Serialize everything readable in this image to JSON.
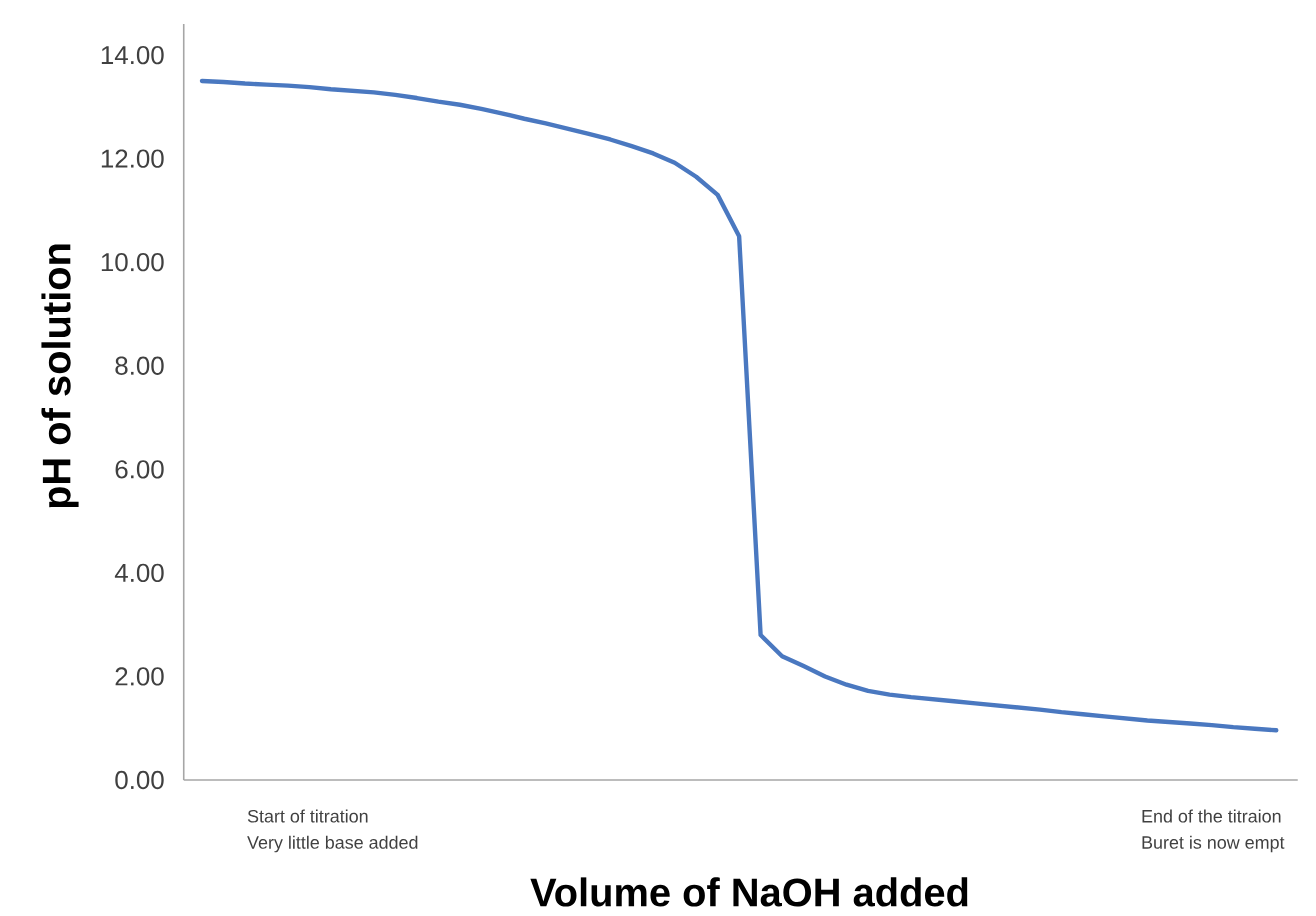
{
  "chart_data": {
    "type": "line",
    "xlabel": "Volume of NaOH added",
    "ylabel": "pH of solution",
    "ylim": [
      0,
      14.6
    ],
    "yticks": [
      {
        "value": 0,
        "label": "0.00"
      },
      {
        "value": 2,
        "label": "2.00"
      },
      {
        "value": 4,
        "label": "4.00"
      },
      {
        "value": 6,
        "label": "6.00"
      },
      {
        "value": 8,
        "label": "8.00"
      },
      {
        "value": 10,
        "label": "10.00"
      },
      {
        "value": 12,
        "label": "12.00"
      },
      {
        "value": 14,
        "label": "14.00"
      }
    ],
    "tick_labels": "y",
    "annotations": [
      "Start of titration",
      "Very little base added",
      "End of the titraion",
      "Buret is now empt"
    ],
    "categories": [
      null,
      null,
      null,
      null,
      null,
      null,
      null,
      null,
      null,
      null,
      null,
      null,
      null,
      null,
      null,
      null,
      null,
      null,
      null,
      null,
      null,
      null,
      null,
      null,
      null,
      null,
      null,
      null,
      null,
      null,
      null,
      null,
      null,
      null,
      null,
      null,
      null,
      null,
      null,
      null,
      null,
      null,
      null,
      null,
      null,
      null,
      null,
      null,
      null,
      null,
      null
    ],
    "series": [
      {
        "color": "#4a78c0",
        "values": [
          13.5,
          13.48,
          13.45,
          13.43,
          13.41,
          13.38,
          13.34,
          13.31,
          13.28,
          13.23,
          13.17,
          13.1,
          13.04,
          12.96,
          12.87,
          12.77,
          12.68,
          12.58,
          12.48,
          12.37,
          12.24,
          12.1,
          11.92,
          11.65,
          11.3,
          10.5,
          2.8,
          2.39,
          2.2,
          2.0,
          1.84,
          1.72,
          1.65,
          1.6,
          1.56,
          1.52,
          1.48,
          1.44,
          1.4,
          1.36,
          1.31,
          1.27,
          1.23,
          1.19,
          1.15,
          1.12,
          1.09,
          1.06,
          1.02,
          0.99,
          0.96
        ]
      }
    ]
  }
}
